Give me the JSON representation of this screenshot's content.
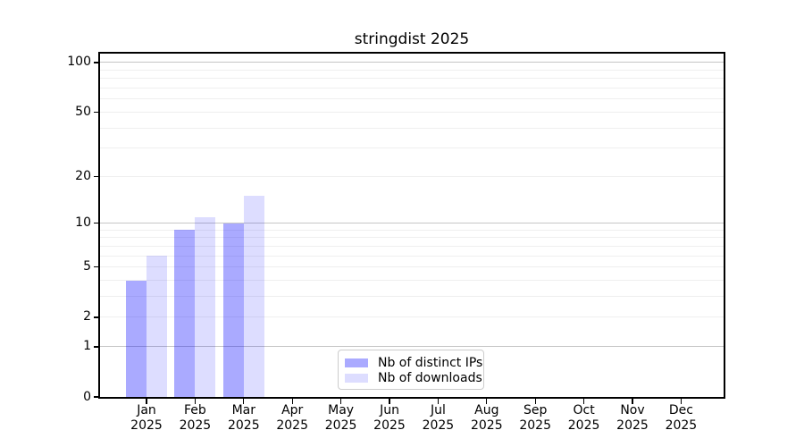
{
  "title": "stringdist 2025",
  "legend": {
    "position": "lower center",
    "items": [
      {
        "label": "Nb of distinct IPs",
        "color": "#aaaaf5"
      },
      {
        "label": "Nb of downloads",
        "color": "#dcdcf8"
      }
    ]
  },
  "chart_data": {
    "type": "bar",
    "title": "stringdist 2025",
    "categories": [
      "Jan 2025",
      "Feb 2025",
      "Mar 2025",
      "Apr 2025",
      "May 2025",
      "Jun 2025",
      "Jul 2025",
      "Aug 2025",
      "Sep 2025",
      "Oct 2025",
      "Nov 2025",
      "Dec 2025"
    ],
    "months": [
      "Jan",
      "Feb",
      "Mar",
      "Apr",
      "May",
      "Jun",
      "Jul",
      "Aug",
      "Sep",
      "Oct",
      "Nov",
      "Dec"
    ],
    "year_label": "2025",
    "series": [
      {
        "name": "Nb of distinct IPs",
        "color": "rgba(0,0,255,0.335)",
        "values": [
          4,
          9,
          10,
          0,
          0,
          0,
          0,
          0,
          0,
          0,
          0,
          0
        ]
      },
      {
        "name": "Nb of downloads",
        "color": "rgba(0,0,255,0.135)",
        "values": [
          6,
          11,
          15,
          0,
          0,
          0,
          0,
          0,
          0,
          0,
          0,
          0
        ]
      }
    ],
    "xlabel": "",
    "ylabel": "",
    "y_axis": {
      "ticks": [
        0,
        1,
        2,
        5,
        10,
        20,
        50,
        100
      ],
      "scale": "log1p",
      "lim": [
        0,
        100
      ]
    },
    "grid": {
      "major": [
        1,
        10,
        100
      ],
      "minor": [
        2,
        3,
        4,
        5,
        6,
        7,
        8,
        9,
        20,
        30,
        40,
        50,
        60,
        70,
        80,
        90
      ],
      "major_color": "#c6c6c6",
      "minor_color": "#efefef"
    },
    "legend_position": "lower center",
    "background": "#ffffff"
  }
}
